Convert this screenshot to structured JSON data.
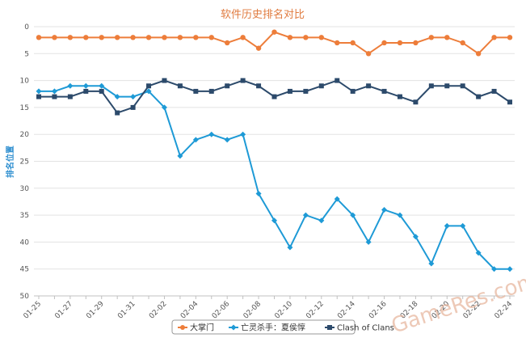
{
  "chart_data": {
    "type": "line",
    "title": "软件历史排名对比",
    "ylabel": "排名位置",
    "ylim": [
      0,
      50
    ],
    "y_inverted": true,
    "y_ticks": [
      0,
      5,
      10,
      15,
      20,
      25,
      30,
      35,
      40,
      45,
      50
    ],
    "x": [
      "01-25",
      "01-26",
      "01-27",
      "01-28",
      "01-29",
      "01-30",
      "01-31",
      "02-01",
      "02-02",
      "02-03",
      "02-04",
      "02-05",
      "02-06",
      "02-07",
      "02-08",
      "02-09",
      "02-10",
      "02-11",
      "02-12",
      "02-13",
      "02-14",
      "02-15",
      "02-16",
      "02-17",
      "02-18",
      "02-19",
      "02-20",
      "02-21",
      "02-22",
      "02-23",
      "02-24"
    ],
    "x_tick_labels": [
      "01-25",
      "01-27",
      "01-29",
      "01-31",
      "02-02",
      "02-04",
      "02-06",
      "02-08",
      "02-10",
      "02-12",
      "02-14",
      "02-16",
      "02-18",
      "02-20",
      "02-22",
      "02-24"
    ],
    "grid": "horizontal",
    "legend_position": "bottom",
    "series": [
      {
        "name": "大掌门",
        "color": "#ed7d3a",
        "marker": "circle",
        "values": [
          2,
          2,
          2,
          2,
          2,
          2,
          2,
          2,
          2,
          2,
          2,
          2,
          3,
          2,
          4,
          1,
          2,
          2,
          2,
          3,
          3,
          5,
          3,
          3,
          3,
          2,
          2,
          3,
          5,
          2,
          2
        ]
      },
      {
        "name": "亡灵杀手：夏侯惇",
        "color": "#1e9ad6",
        "marker": "diamond",
        "values": [
          12,
          12,
          11,
          11,
          11,
          13,
          13,
          12,
          15,
          24,
          21,
          20,
          21,
          20,
          31,
          36,
          41,
          35,
          36,
          32,
          35,
          40,
          34,
          35,
          39,
          44,
          37,
          37,
          42,
          45,
          45
        ]
      },
      {
        "name": "Clash of Clans",
        "color": "#2c4a6b",
        "marker": "square",
        "values": [
          13,
          13,
          13,
          12,
          12,
          16,
          15,
          11,
          10,
          11,
          12,
          12,
          11,
          10,
          11,
          13,
          12,
          12,
          11,
          10,
          12,
          11,
          12,
          13,
          14,
          11,
          11,
          11,
          13,
          12,
          14
        ]
      }
    ],
    "watermark": "GameRes.com"
  }
}
